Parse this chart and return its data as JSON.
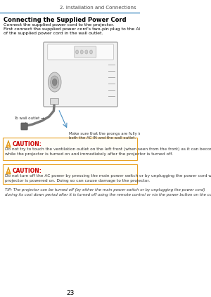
{
  "page_num": "23",
  "section_header": "2. Installation and Connections",
  "title": "Connecting the Supplied Power Cord",
  "body_text_1": "Connect the supplied power cord to the projector.",
  "body_text_2": "First connect the supplied power cord’s two-pin plug to the AC IN of the projector, and then connect the other plug\nof the supplied power cord in the wall outlet.",
  "annotation_1": "To wall outlet →",
  "annotation_2": "Make sure that the prongs are fully inserted into\nboth the AC IN and the wall outlet.",
  "caution1_title": "CAUTION:",
  "caution1_text": "Do not try to touch the ventilation outlet on the left front (when seen from the front) as it can become heated\nwhile the projector is turned on and immediately after the projector is turned off.",
  "caution2_title": "CAUTION:",
  "caution2_text": "Do not turn off the AC power by pressing the main power switch or by unplugging the power cord when the\nprojector is powered on. Doing so can cause damage to the projector.",
  "tip_text": "TIP: The projector can be turned off (by either the main power switch or by unplugging the power cord)\nduring its cool down period after it is turned off using the remote control or via the power button on the control panel.",
  "bg_color": "#ffffff",
  "text_color": "#000000",
  "header_line_color": "#4a90c4",
  "caution_icon_color": "#f5a623",
  "caution_box_border": "#e8a020"
}
